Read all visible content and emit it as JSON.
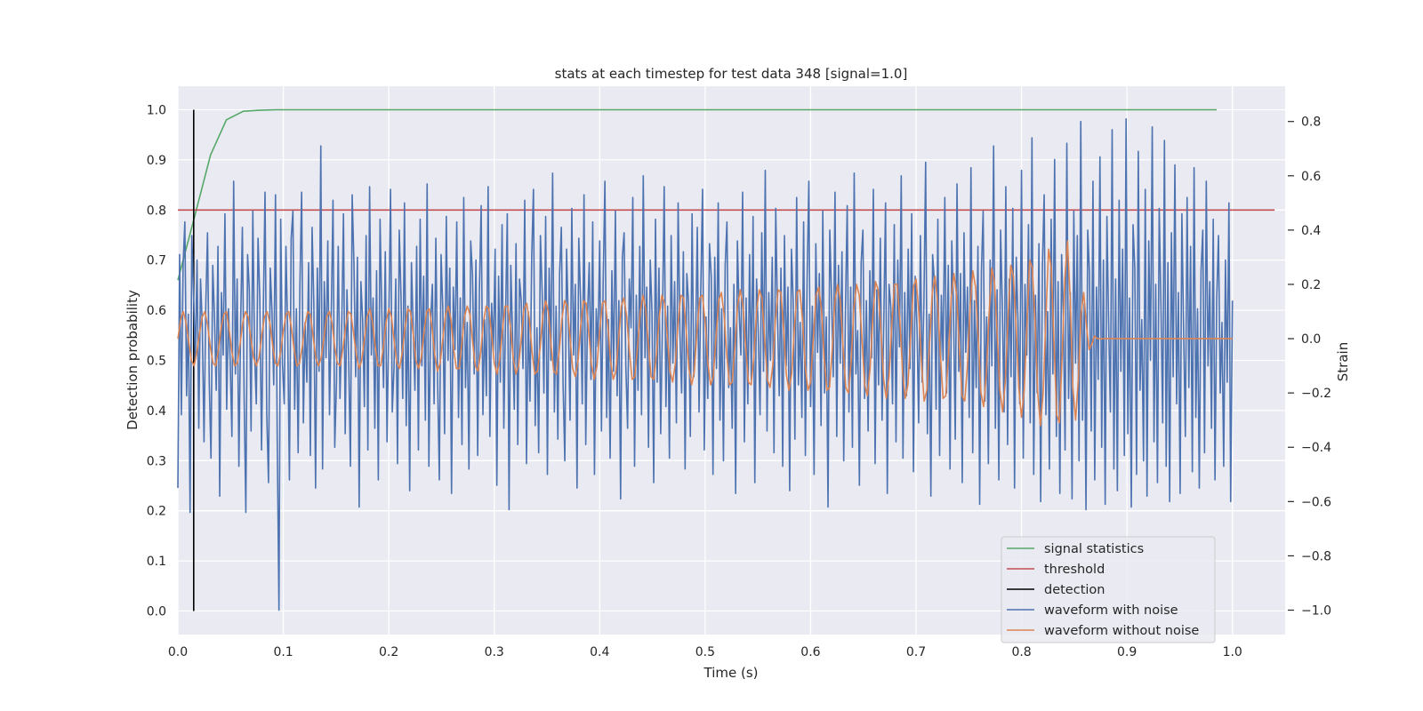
{
  "chart_data": {
    "type": "line",
    "title": "stats at each timestep for test data 348 [signal=1.0]",
    "xlabel": "Time (s)",
    "ylabel": "Detection probability",
    "y2label": "Strain",
    "xlim": [
      0.0,
      1.05
    ],
    "ylim": [
      -0.047,
      1.047
    ],
    "y2lim": [
      -1.09,
      0.93
    ],
    "xticks": [
      0.0,
      0.1,
      0.2,
      0.3,
      0.4,
      0.5,
      0.6,
      0.7,
      0.8,
      0.9,
      1.0
    ],
    "yticks": [
      0.0,
      0.1,
      0.2,
      0.3,
      0.4,
      0.5,
      0.6,
      0.7,
      0.8,
      0.9,
      1.0
    ],
    "y2ticks": [
      -1.0,
      -0.8,
      -0.6,
      -0.4,
      -0.2,
      0.0,
      0.2,
      0.4,
      0.6,
      0.8
    ],
    "xtick_labels": [
      "0.0",
      "0.1",
      "0.2",
      "0.3",
      "0.4",
      "0.5",
      "0.6",
      "0.7",
      "0.8",
      "0.9",
      "1.0"
    ],
    "ytick_labels": [
      "0.0",
      "0.1",
      "0.2",
      "0.3",
      "0.4",
      "0.5",
      "0.6",
      "0.7",
      "0.8",
      "0.9",
      "1.0"
    ],
    "y2tick_labels": [
      "−1.0",
      "−0.8",
      "−0.6",
      "−0.4",
      "−0.2",
      "0.0",
      "0.2",
      "0.4",
      "0.6",
      "0.8"
    ],
    "grid": true,
    "legend_position": "lower-right",
    "series": [
      {
        "name": "signal statistics",
        "axis": "left",
        "color": "#55a868",
        "x": [
          0.0,
          0.015,
          0.031,
          0.046,
          0.062,
          0.077,
          0.093,
          0.108,
          0.124,
          0.2,
          0.3,
          0.4,
          0.5,
          0.6,
          0.7,
          0.8,
          0.9,
          0.985
        ],
        "y": [
          0.66,
          0.78,
          0.91,
          0.98,
          0.997,
          0.999,
          1.0,
          1.0,
          1.0,
          1.0,
          1.0,
          1.0,
          1.0,
          1.0,
          1.0,
          1.0,
          1.0,
          1.0
        ]
      },
      {
        "name": "threshold",
        "axis": "left",
        "color": "#c44e52",
        "x": [
          0.0,
          1.04
        ],
        "y": [
          0.8,
          0.8
        ]
      },
      {
        "name": "detection",
        "axis": "left",
        "color": "#000000",
        "x": [
          0.015,
          0.015
        ],
        "y": [
          0.0,
          1.0
        ]
      },
      {
        "name": "waveform with noise",
        "axis": "right",
        "color": "#4c72b0",
        "x_range": [
          0.0,
          1.0
        ],
        "y": [
          -0.55,
          0.31,
          -0.28,
          0.27,
          0.43,
          -0.21,
          0.09,
          -0.64,
          0.38,
          0.16,
          -0.08,
          0.29,
          -0.33,
          0.22,
          0.05,
          -0.38,
          0.12,
          0.39,
          -0.16,
          -0.44,
          0.27,
          0.08,
          -0.19,
          0.34,
          -0.58,
          0.17,
          -0.06,
          0.46,
          -0.26,
          0.11,
          -0.08,
          -0.36,
          0.58,
          -0.13,
          0.22,
          -0.47,
          0.05,
          0.41,
          -0.21,
          -0.64,
          0.31,
          0.18,
          -0.34,
          0.47,
          -0.05,
          -0.24,
          0.37,
          0.15,
          -0.41,
          0.09,
          0.54,
          -0.28,
          -0.53,
          0.26,
          0.1,
          -0.17,
          0.53,
          -0.37,
          -1.0,
          0.44,
          -0.09,
          -0.24,
          0.34,
          0.02,
          -0.52,
          0.37,
          0.47,
          -0.26,
          0.11,
          -0.42,
          0.19,
          0.54,
          -0.31,
          0.06,
          -0.16,
          0.28,
          -0.43,
          0.41,
          0.13,
          -0.55,
          0.26,
          -0.12,
          0.71,
          -0.48,
          0.21,
          -0.07,
          0.36,
          -0.28,
          0.09,
          0.51,
          -0.4,
          -0.16,
          0.34,
          -0.22,
          0.04,
          0.46,
          -0.35,
          0.18,
          -0.08,
          -0.47,
          0.53,
          0.28,
          -0.14,
          0.3,
          -0.62,
          0.21,
          0.07,
          -0.25,
          0.38,
          -0.41,
          0.56,
          -0.06,
          0.15,
          -0.33,
          0.25,
          -0.52,
          0.44,
          0.1,
          -0.18,
          0.32,
          -0.38,
          0.06,
          0.55,
          -0.27,
          -0.11,
          0.22,
          -0.46,
          0.4,
          0.16,
          -0.22,
          0.5,
          -0.32,
          0.12,
          -0.56,
          0.28,
          0.04,
          -0.19,
          0.34,
          -0.41,
          0.44,
          -0.1,
          0.23,
          -0.3,
          0.57,
          -0.47,
          0.06,
          0.2,
          -0.24,
          0.37,
          -0.15,
          -0.52,
          0.31,
          0.11,
          -0.35,
          0.45,
          -0.08,
          0.26,
          -0.57,
          0.19,
          -0.04,
          0.43,
          -0.29,
          0.15,
          -0.39,
          0.52,
          -0.18,
          0.06,
          -0.48,
          0.36,
          0.24,
          -0.13,
          0.29,
          -0.43,
          0.18,
          0.49,
          -0.28,
          0.07,
          -0.21,
          0.56,
          -0.36,
          0.13,
          -0.05,
          0.33,
          -0.54,
          0.23,
          -0.16,
          0.42,
          -0.33,
          0.08,
          0.46,
          -0.63,
          0.27,
          0.02,
          -0.26,
          0.35,
          -0.39,
          0.22,
          0.14,
          -0.11,
          0.51,
          -0.46,
          0.1,
          -0.23,
          0.3,
          0.55,
          -0.32,
          0.04,
          -0.42,
          0.38,
          0.17,
          -0.2,
          0.45,
          -0.5,
          0.26,
          -0.08,
          0.61,
          -0.27,
          0.12,
          -0.37,
          0.24,
          0.41,
          -0.17,
          -0.45,
          0.33,
          0.06,
          -0.3,
          0.48,
          -0.06,
          0.2,
          -0.55,
          0.37,
          0.15,
          -0.24,
          0.53,
          -0.39,
          0.08,
          0.28,
          -0.15,
          0.43,
          -0.5,
          0.11,
          -0.03,
          0.36,
          -0.34,
          0.21,
          0.58,
          -0.29,
          0.07,
          -0.44,
          0.25,
          -0.12,
          0.47,
          -0.21,
          0.14,
          -0.59,
          0.3,
          0.39,
          -0.1,
          -0.33,
          0.22,
          0.04,
          0.52,
          -0.47,
          0.16,
          -0.19,
          0.34,
          -0.28,
          0.6,
          -0.07,
          0.19,
          -0.4,
          0.29,
          0.1,
          -0.53,
          0.44,
          -0.16,
          0.26,
          -0.35,
          0.06,
          0.56,
          -0.25,
          0.12,
          -0.44,
          0.38,
          -0.09,
          0.21,
          -0.31,
          0.5,
          0.03,
          -0.2,
          0.32,
          -0.48,
          0.24,
          0.13,
          -0.36,
          0.46,
          -0.14,
          -0.02,
          0.41,
          -0.27,
          0.18,
          0.55,
          -0.41,
          0.08,
          -0.22,
          0.35,
          0.23,
          -0.5,
          0.3,
          -0.11,
          0.5,
          -0.3,
          0.11,
          -0.45,
          0.27,
          0.43,
          -0.18,
          0.04,
          -0.33,
          0.2,
          -0.57,
          0.36,
          0.1,
          -0.06,
          0.54,
          -0.38,
          0.15,
          -0.24,
          0.31,
          -0.15,
          0.45,
          -0.53,
          0.22,
          0.02,
          -0.28,
          0.39,
          -0.12,
          0.62,
          -0.34,
          0.17,
          -0.08,
          0.3,
          -0.42,
          0.48,
          0.09,
          -0.21,
          0.26,
          -0.47,
          0.38,
          -0.1,
          0.19,
          -0.56,
          0.33,
          0.14,
          -0.37,
          0.52,
          -0.17,
          0.06,
          -0.29,
          0.43,
          -0.43,
          0.22,
          0.58,
          -0.25,
          0.12,
          -0.5,
          0.35,
          -0.05,
          0.24,
          -0.32,
          0.47,
          -0.2,
          0.08,
          -0.62,
          0.4,
          0.16,
          -0.14,
          0.54,
          -0.36,
          0.27,
          -0.09,
          0.32,
          -0.45,
          0.11,
          0.49,
          -0.27,
          0.19,
          -0.4,
          0.61,
          -0.13,
          0.03,
          -0.54,
          0.28,
          0.4,
          -0.22,
          0.14,
          -0.34,
          0.25,
          -0.07,
          0.55,
          -0.46,
          0.18,
          -0.17,
          0.37,
          -0.3,
          0.07,
          0.5,
          -0.57,
          0.2,
          0.12,
          -0.24,
          0.42,
          -0.38,
          0.29,
          -0.03,
          0.6,
          -0.44,
          0.17,
          -0.21,
          0.33,
          -0.11,
          0.46,
          -0.49,
          0.23,
          0.05,
          -0.31,
          0.38,
          -0.16,
          0.13,
          0.65,
          -0.35,
          0.09,
          -0.58,
          0.31,
          0.21,
          -0.26,
          0.44,
          -0.43,
          0.16,
          -0.08,
          0.52,
          -0.2,
          0.27,
          -0.48,
          0.36,
          0.1,
          -0.37,
          0.57,
          -0.12,
          0.24,
          -0.53,
          0.39,
          -0.05,
          0.19,
          -0.29,
          0.63,
          -0.42,
          0.14,
          -0.18,
          0.34,
          -0.61,
          0.25,
          0.47,
          -0.23,
          0.08,
          -0.46,
          0.29,
          -0.1,
          0.71,
          -0.33,
          0.18,
          -0.52,
          0.4,
          0.12,
          -0.27,
          0.56,
          -0.39,
          0.22,
          -0.14,
          0.48,
          -0.55,
          0.3,
          0.06,
          -0.24,
          0.62,
          -0.44,
          0.2,
          -0.06,
          0.42,
          -0.31,
          0.74,
          -0.5,
          0.16,
          -0.2,
          0.35,
          -0.6,
          0.27,
          0.53,
          -0.28,
          0.1,
          -0.48,
          0.44,
          -0.13,
          0.66,
          -0.36,
          0.21,
          -0.57,
          0.31,
          0.08,
          -0.41,
          0.72,
          -0.22,
          0.17,
          -0.59,
          0.47,
          -0.09,
          0.38,
          -0.45,
          0.8,
          -0.3,
          0.13,
          -0.63,
          0.4,
          0.24,
          -0.34,
          0.58,
          -0.52,
          0.19,
          -0.15,
          0.67,
          -0.4,
          0.29,
          -0.61,
          0.45,
          0.05,
          -0.27,
          0.77,
          -0.48,
          0.22,
          -0.56,
          0.51,
          -0.12,
          0.33,
          -0.43,
          0.81,
          -0.35,
          0.15,
          -0.62,
          0.42,
          0.26,
          -0.5,
          0.69,
          -0.19,
          0.07,
          -0.45,
          0.55,
          -0.58,
          0.36,
          -0.08,
          0.78,
          -0.38,
          0.2,
          -0.53,
          0.48,
          0.12,
          -0.31,
          0.73,
          -0.47,
          0.28,
          -0.6,
          0.39,
          -0.14,
          0.64,
          -0.24,
          0.17,
          -0.57,
          0.46,
          0.03,
          -0.36,
          0.52,
          -0.18,
          0.34,
          -0.49,
          0.63,
          -0.29,
          0.11,
          -0.55,
          0.25,
          0.4,
          -0.42,
          0.58,
          -0.1,
          0.21,
          -0.33,
          0.44,
          -0.52,
          0.15,
          0.38,
          -0.2,
          0.06,
          -0.47,
          0.29,
          -0.16,
          0.5,
          -0.6,
          0.14
        ]
      },
      {
        "name": "waveform without noise",
        "axis": "right",
        "color": "#dd8452",
        "x_range": [
          0.0,
          1.0
        ],
        "y": [
          0.0,
          0.07,
          0.1,
          0.06,
          -0.01,
          -0.08,
          -0.1,
          -0.05,
          0.02,
          0.08,
          0.1,
          0.05,
          -0.03,
          -0.09,
          -0.1,
          -0.04,
          0.04,
          0.09,
          0.1,
          0.03,
          -0.05,
          -0.1,
          -0.09,
          -0.02,
          0.06,
          0.1,
          0.08,
          0.0,
          -0.07,
          -0.1,
          -0.07,
          0.01,
          0.08,
          0.1,
          0.06,
          -0.02,
          -0.09,
          -0.1,
          -0.05,
          0.03,
          0.09,
          0.1,
          0.04,
          -0.04,
          -0.1,
          -0.09,
          -0.03,
          0.05,
          0.1,
          0.09,
          0.01,
          -0.07,
          -0.1,
          -0.07,
          0.0,
          0.08,
          0.1,
          0.06,
          -0.03,
          -0.09,
          -0.1,
          -0.04,
          0.04,
          0.1,
          0.09,
          0.02,
          -0.06,
          -0.11,
          -0.08,
          0.0,
          0.08,
          0.11,
          0.06,
          -0.03,
          -0.1,
          -0.1,
          -0.03,
          0.06,
          0.11,
          0.08,
          -0.01,
          -0.09,
          -0.11,
          -0.05,
          0.04,
          0.11,
          0.1,
          0.02,
          -0.08,
          -0.11,
          -0.07,
          0.02,
          0.1,
          0.11,
          0.04,
          -0.06,
          -0.12,
          -0.09,
          0.0,
          0.09,
          0.12,
          0.07,
          -0.04,
          -0.11,
          -0.11,
          -0.02,
          0.08,
          0.12,
          0.09,
          -0.01,
          -0.1,
          -0.12,
          -0.05,
          0.06,
          0.12,
          0.11,
          0.02,
          -0.09,
          -0.13,
          -0.08,
          0.03,
          0.12,
          0.12,
          0.04,
          -0.07,
          -0.13,
          -0.1,
          0.0,
          0.11,
          0.13,
          0.07,
          -0.05,
          -0.13,
          -0.12,
          -0.03,
          0.09,
          0.14,
          0.1,
          -0.02,
          -0.12,
          -0.13,
          -0.05,
          0.07,
          0.14,
          0.12,
          0.01,
          -0.11,
          -0.14,
          -0.08,
          0.05,
          0.14,
          0.13,
          0.02,
          -0.1,
          -0.15,
          -0.1,
          0.03,
          0.13,
          0.14,
          0.05,
          -0.08,
          -0.15,
          -0.12,
          0.0,
          0.12,
          0.15,
          0.08,
          -0.05,
          -0.15,
          -0.14,
          -0.03,
          0.1,
          0.16,
          0.11,
          -0.02,
          -0.14,
          -0.15,
          -0.06,
          0.08,
          0.16,
          0.13,
          0.01,
          -0.12,
          -0.16,
          -0.09,
          0.06,
          0.16,
          0.15,
          0.03,
          -0.11,
          -0.17,
          -0.12,
          0.03,
          0.15,
          0.16,
          0.06,
          -0.09,
          -0.17,
          -0.14,
          0.0,
          0.14,
          0.17,
          0.09,
          -0.06,
          -0.17,
          -0.16,
          -0.03,
          0.12,
          0.18,
          0.12,
          -0.03,
          -0.16,
          -0.17,
          -0.07,
          0.1,
          0.18,
          0.15,
          0.0,
          -0.15,
          -0.18,
          -0.1,
          0.07,
          0.18,
          0.17,
          0.04,
          -0.13,
          -0.19,
          -0.13,
          0.04,
          0.17,
          0.18,
          0.07,
          -0.1,
          -0.19,
          -0.16,
          0.0,
          0.16,
          0.19,
          0.11,
          -0.07,
          -0.19,
          -0.18,
          -0.04,
          0.14,
          0.2,
          0.14,
          -0.03,
          -0.18,
          -0.2,
          -0.08,
          0.11,
          0.2,
          0.16,
          0.0,
          -0.17,
          -0.21,
          -0.11,
          0.08,
          0.21,
          0.18,
          0.03,
          -0.15,
          -0.22,
          -0.14,
          0.05,
          0.2,
          0.2,
          0.07,
          -0.12,
          -0.22,
          -0.17,
          0.01,
          0.19,
          0.22,
          0.1,
          -0.09,
          -0.23,
          -0.19,
          -0.02,
          0.17,
          0.23,
          0.13,
          -0.06,
          -0.22,
          -0.21,
          -0.06,
          0.15,
          0.24,
          0.16,
          -0.03,
          -0.21,
          -0.23,
          -0.1,
          0.12,
          0.25,
          0.19,
          0.0,
          -0.2,
          -0.25,
          -0.13,
          0.09,
          0.26,
          0.21,
          0.02,
          -0.19,
          -0.27,
          -0.16,
          0.07,
          0.27,
          0.23,
          0.05,
          -0.18,
          -0.29,
          -0.19,
          0.05,
          0.29,
          0.26,
          0.06,
          -0.2,
          -0.32,
          -0.2,
          0.07,
          0.33,
          0.26,
          -0.01,
          -0.28,
          -0.31,
          -0.07,
          0.22,
          0.36,
          0.15,
          -0.18,
          -0.3,
          -0.15,
          0.09,
          0.17,
          0.05,
          -0.04,
          -0.02,
          0.01,
          0.0,
          0.0,
          0.0,
          0.0,
          0.0,
          0.0,
          0.0,
          0.0,
          0.0,
          0.0,
          0.0,
          0.0,
          0.0,
          0.0,
          0.0,
          0.0,
          0.0,
          0.0,
          0.0,
          0.0,
          0.0,
          0.0,
          0.0,
          0.0,
          0.0,
          0.0,
          0.0,
          0.0,
          0.0,
          0.0,
          0.0,
          0.0,
          0.0,
          0.0,
          0.0,
          0.0,
          0.0,
          0.0,
          0.0,
          0.0,
          0.0,
          0.0,
          0.0,
          0.0,
          0.0,
          0.0,
          0.0,
          0.0,
          0.0,
          0.0,
          0.0
        ]
      }
    ]
  },
  "legend": {
    "items": [
      {
        "label": "signal statistics",
        "color": "#55a868"
      },
      {
        "label": "threshold",
        "color": "#c44e52"
      },
      {
        "label": "detection",
        "color": "#000000"
      },
      {
        "label": "waveform with noise",
        "color": "#4c72b0"
      },
      {
        "label": "waveform without noise",
        "color": "#dd8452"
      }
    ]
  },
  "colors": {
    "plot_background": "#eaeaf2",
    "grid": "#ffffff",
    "text": "#262626"
  }
}
